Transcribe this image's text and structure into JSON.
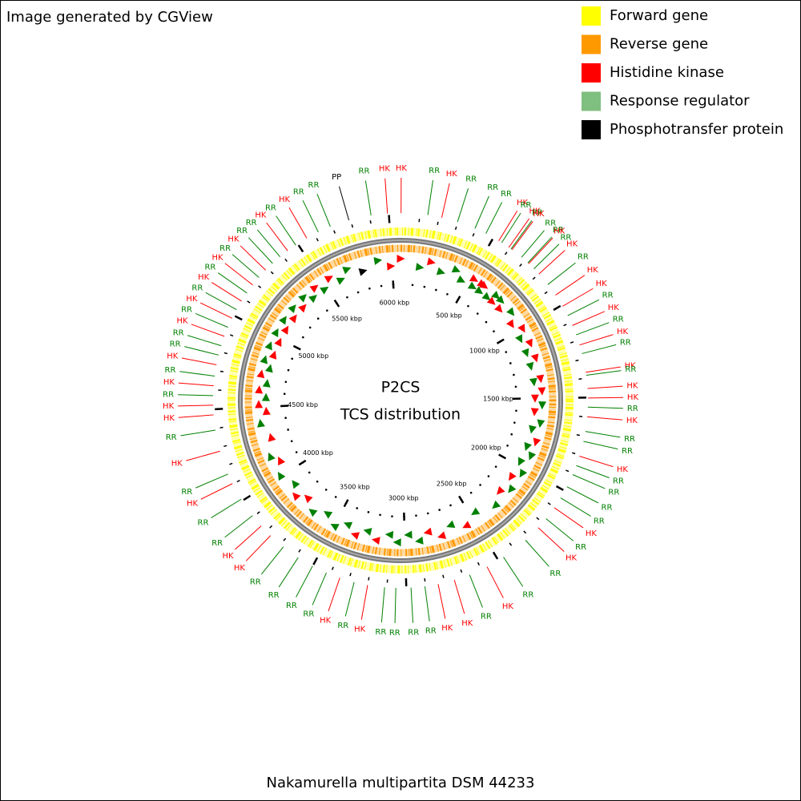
{
  "header": {
    "title": "Image generated by CGView"
  },
  "center": {
    "title": "P2CS",
    "subtitle": "TCS distribution"
  },
  "footer": {
    "organism": "Nakamurella multipartita DSM 44233"
  },
  "legend": [
    {
      "name": "Forward gene",
      "color": "#ffff00"
    },
    {
      "name": "Reverse gene",
      "color": "#ff9900"
    },
    {
      "name": "Histidine kinase",
      "color": "#ff0000"
    },
    {
      "name": "Response regulator",
      "color": "#7fbf7f"
    },
    {
      "name": "Phosphotransfer protein",
      "color": "#000000"
    }
  ],
  "genome": {
    "length": 6060,
    "ticks": [
      {
        "value": 500,
        "label": "500 kbp"
      },
      {
        "value": 1000,
        "label": "1000 kbp"
      },
      {
        "value": 1500,
        "label": "1500 kbp"
      },
      {
        "value": 2000,
        "label": "2000 kbp"
      },
      {
        "value": 2500,
        "label": "2500 kbp"
      },
      {
        "value": 3000,
        "label": "3000 kbp"
      },
      {
        "value": 3500,
        "label": "3500 kbp"
      },
      {
        "value": 4000,
        "label": "4000 kbp"
      },
      {
        "value": 4500,
        "label": "4500 kbp"
      },
      {
        "value": 5000,
        "label": "5000 kbp"
      },
      {
        "value": 5500,
        "label": "5500 kbp"
      },
      {
        "value": 6000,
        "label": "6000 kbp"
      }
    ]
  },
  "features": [
    {
      "label": "PP",
      "position": 5791,
      "color": "#000000"
    },
    {
      "label": "RR",
      "position": 5908,
      "color": "#008000"
    },
    {
      "label": "HK",
      "position": 5993,
      "color": "#ff0000"
    },
    {
      "label": "HK",
      "position": 3,
      "color": "#ff0000"
    },
    {
      "label": "RR",
      "position": 141,
      "color": "#008000"
    },
    {
      "label": "HK",
      "position": 214,
      "color": "#ff0000"
    },
    {
      "label": "RR",
      "position": 298,
      "color": "#008000"
    },
    {
      "label": "RR",
      "position": 394,
      "color": "#008000"
    },
    {
      "label": "RR",
      "position": 456,
      "color": "#008000"
    },
    {
      "label": "HK",
      "position": 532,
      "color": "#ff0000"
    },
    {
      "label": "RR",
      "position": 550,
      "color": "#008000"
    },
    {
      "label": "HK",
      "position": 594,
      "color": "#ff0000"
    },
    {
      "label": "RR",
      "position": 608,
      "color": "#008000"
    },
    {
      "label": "HK",
      "position": 614,
      "color": "#ff0000"
    },
    {
      "label": "RR",
      "position": 677,
      "color": "#008000"
    },
    {
      "label": "RR",
      "position": 720,
      "color": "#008000"
    },
    {
      "label": "HK",
      "position": 726,
      "color": "#ff0000"
    },
    {
      "label": "RR",
      "position": 764,
      "color": "#008000"
    },
    {
      "label": "HK",
      "position": 801,
      "color": "#ff0000"
    },
    {
      "label": "RR",
      "position": 872,
      "color": "#008000"
    },
    {
      "label": "HK",
      "position": 939,
      "color": "#ff0000"
    },
    {
      "label": "HK",
      "position": 1007,
      "color": "#ff0000"
    },
    {
      "label": "RR",
      "position": 1062,
      "color": "#008000"
    },
    {
      "label": "HK",
      "position": 1118,
      "color": "#ff0000"
    },
    {
      "label": "RR",
      "position": 1170,
      "color": "#008000"
    },
    {
      "label": "HK",
      "position": 1225,
      "color": "#ff0000"
    },
    {
      "label": "RR",
      "position": 1271,
      "color": "#008000"
    },
    {
      "label": "HK",
      "position": 1369,
      "color": "#ff0000"
    },
    {
      "label": "RR",
      "position": 1385,
      "color": "#008000"
    },
    {
      "label": "HK",
      "position": 1453,
      "color": "#ff0000"
    },
    {
      "label": "HK",
      "position": 1502,
      "color": "#ff0000"
    },
    {
      "label": "RR",
      "position": 1549,
      "color": "#008000"
    },
    {
      "label": "HK",
      "position": 1599,
      "color": "#ff0000"
    },
    {
      "label": "RR",
      "position": 1675,
      "color": "#008000"
    },
    {
      "label": "RR",
      "position": 1727,
      "color": "#008000"
    },
    {
      "label": "HK",
      "position": 1806,
      "color": "#ff0000"
    },
    {
      "label": "RR",
      "position": 1857,
      "color": "#008000"
    },
    {
      "label": "RR",
      "position": 1907,
      "color": "#008000"
    },
    {
      "label": "RR",
      "position": 1976,
      "color": "#008000"
    },
    {
      "label": "RR",
      "position": 2042,
      "color": "#008000"
    },
    {
      "label": "HK",
      "position": 2102,
      "color": "#ff0000"
    },
    {
      "label": "RR",
      "position": 2173,
      "color": "#008000"
    },
    {
      "label": "HK",
      "position": 2234,
      "color": "#ff0000"
    },
    {
      "label": "RR",
      "position": 2326,
      "color": "#008000"
    },
    {
      "label": "RR",
      "position": 2469,
      "color": "#008000"
    },
    {
      "label": "HK",
      "position": 2567,
      "color": "#ff0000"
    },
    {
      "label": "RR",
      "position": 2666,
      "color": "#008000"
    },
    {
      "label": "HK",
      "position": 2749,
      "color": "#ff0000"
    },
    {
      "label": "HK",
      "position": 2835,
      "color": "#ff0000"
    },
    {
      "label": "RR",
      "position": 2904,
      "color": "#008000"
    },
    {
      "label": "RR",
      "position": 2976,
      "color": "#008000"
    },
    {
      "label": "RR",
      "position": 3054,
      "color": "#008000"
    },
    {
      "label": "RR",
      "position": 3112,
      "color": "#008000"
    },
    {
      "label": "HK",
      "position": 3200,
      "color": "#ff0000"
    },
    {
      "label": "RR",
      "position": 3271,
      "color": "#008000"
    },
    {
      "label": "HK",
      "position": 3348,
      "color": "#ff0000"
    },
    {
      "label": "RR",
      "position": 3422,
      "color": "#008000"
    },
    {
      "label": "RR",
      "position": 3501,
      "color": "#008000"
    },
    {
      "label": "RR",
      "position": 3587,
      "color": "#008000"
    },
    {
      "label": "RR",
      "position": 3681,
      "color": "#008000"
    },
    {
      "label": "HK",
      "position": 3769,
      "color": "#ff0000"
    },
    {
      "label": "HK",
      "position": 3838,
      "color": "#ff0000"
    },
    {
      "label": "RR",
      "position": 3907,
      "color": "#008000"
    },
    {
      "label": "RR",
      "position": 4010,
      "color": "#008000"
    },
    {
      "label": "HK",
      "position": 4102,
      "color": "#ff0000"
    },
    {
      "label": "RR",
      "position": 4156,
      "color": "#008000"
    },
    {
      "label": "HK",
      "position": 4281,
      "color": "#ff0000"
    },
    {
      "label": "RR",
      "position": 4392,
      "color": "#008000"
    },
    {
      "label": "HK",
      "position": 4471,
      "color": "#ff0000"
    },
    {
      "label": "HK",
      "position": 4521,
      "color": "#ff0000"
    },
    {
      "label": "RR",
      "position": 4570,
      "color": "#008000"
    },
    {
      "label": "HK",
      "position": 4621,
      "color": "#ff0000"
    },
    {
      "label": "RR",
      "position": 4671,
      "color": "#008000"
    },
    {
      "label": "HK",
      "position": 4730,
      "color": "#ff0000"
    },
    {
      "label": "RR",
      "position": 4781,
      "color": "#008000"
    },
    {
      "label": "RR",
      "position": 4831,
      "color": "#008000"
    },
    {
      "label": "HK",
      "position": 4882,
      "color": "#ff0000"
    },
    {
      "label": "RR",
      "position": 4932,
      "color": "#008000"
    },
    {
      "label": "HK",
      "position": 4983,
      "color": "#ff0000"
    },
    {
      "label": "RR",
      "position": 5033,
      "color": "#008000"
    },
    {
      "label": "HK",
      "position": 5084,
      "color": "#ff0000"
    },
    {
      "label": "RR",
      "position": 5134,
      "color": "#008000"
    },
    {
      "label": "HK",
      "position": 5185,
      "color": "#ff0000"
    },
    {
      "label": "RR",
      "position": 5235,
      "color": "#008000"
    },
    {
      "label": "HK",
      "position": 5286,
      "color": "#ff0000"
    },
    {
      "label": "RR",
      "position": 5336,
      "color": "#008000"
    },
    {
      "label": "RR",
      "position": 5387,
      "color": "#008000"
    },
    {
      "label": "HK",
      "position": 5437,
      "color": "#ff0000"
    },
    {
      "label": "RR",
      "position": 5488,
      "color": "#008000"
    },
    {
      "label": "HK",
      "position": 5555,
      "color": "#ff0000"
    },
    {
      "label": "RR",
      "position": 5622,
      "color": "#008000"
    },
    {
      "label": "RR",
      "position": 5690,
      "color": "#008000"
    }
  ]
}
